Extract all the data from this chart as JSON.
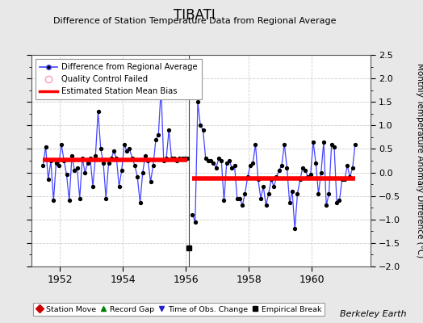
{
  "title": "TIBATI",
  "subtitle": "Difference of Station Temperature Data from Regional Average",
  "ylabel": "Monthly Temperature Anomaly Difference (°C)",
  "xlabel_ticks": [
    1952,
    1954,
    1956,
    1958,
    1960
  ],
  "ylim": [
    -2.0,
    2.5
  ],
  "yticks": [
    -2.0,
    -1.5,
    -1.0,
    -0.5,
    0.0,
    0.5,
    1.0,
    1.5,
    2.0,
    2.5
  ],
  "background_color": "#e8e8e8",
  "plot_bg_color": "#ffffff",
  "segment1_bias": 0.27,
  "segment2_bias": -0.12,
  "break_year": 1956.083,
  "break_marker_y": -1.6,
  "data_x": [
    1951.458,
    1951.542,
    1951.625,
    1951.708,
    1951.792,
    1951.875,
    1951.958,
    1952.042,
    1952.125,
    1952.208,
    1952.292,
    1952.375,
    1952.458,
    1952.542,
    1952.625,
    1952.708,
    1952.792,
    1952.875,
    1952.958,
    1953.042,
    1953.125,
    1953.208,
    1953.292,
    1953.375,
    1953.458,
    1953.542,
    1953.625,
    1953.708,
    1953.792,
    1953.875,
    1953.958,
    1954.042,
    1954.125,
    1954.208,
    1954.292,
    1954.375,
    1954.458,
    1954.542,
    1954.625,
    1954.708,
    1954.792,
    1954.875,
    1954.958,
    1955.042,
    1955.125,
    1955.208,
    1955.292,
    1955.375,
    1955.458,
    1955.542,
    1955.625,
    1955.708,
    1955.792,
    1955.875,
    1955.958,
    1956.042,
    1956.208,
    1956.292,
    1956.375,
    1956.458,
    1956.542,
    1956.625,
    1956.708,
    1956.792,
    1956.875,
    1956.958,
    1957.042,
    1957.125,
    1957.208,
    1957.292,
    1957.375,
    1957.458,
    1957.542,
    1957.625,
    1957.708,
    1957.792,
    1957.875,
    1957.958,
    1958.042,
    1958.125,
    1958.208,
    1958.292,
    1958.375,
    1958.458,
    1958.542,
    1958.625,
    1958.708,
    1958.792,
    1958.875,
    1958.958,
    1959.042,
    1959.125,
    1959.208,
    1959.292,
    1959.375,
    1959.458,
    1959.542,
    1959.625,
    1959.708,
    1959.792,
    1959.875,
    1959.958,
    1960.042,
    1960.125,
    1960.208,
    1960.292,
    1960.375,
    1960.458,
    1960.542,
    1960.625,
    1960.708,
    1960.792,
    1960.875,
    1960.958,
    1961.042,
    1961.125,
    1961.208,
    1961.292,
    1961.375
  ],
  "data_y": [
    0.15,
    0.55,
    -0.15,
    0.25,
    -0.6,
    0.2,
    0.15,
    0.6,
    0.25,
    -0.05,
    -0.6,
    0.35,
    0.05,
    0.1,
    -0.55,
    0.3,
    0.0,
    0.2,
    0.3,
    -0.3,
    0.35,
    1.3,
    0.5,
    0.2,
    -0.55,
    0.2,
    0.3,
    0.45,
    0.3,
    -0.3,
    0.05,
    0.6,
    0.45,
    0.5,
    0.3,
    0.15,
    -0.1,
    -0.65,
    0.0,
    0.35,
    0.25,
    -0.2,
    0.15,
    0.7,
    0.8,
    1.8,
    0.25,
    0.3,
    0.9,
    0.3,
    0.3,
    0.25,
    0.3,
    0.3,
    0.3,
    0.3,
    -0.9,
    -1.05,
    1.5,
    1.0,
    0.9,
    0.3,
    0.25,
    0.25,
    0.2,
    0.1,
    0.3,
    0.25,
    -0.6,
    0.2,
    0.25,
    0.1,
    0.15,
    -0.55,
    -0.55,
    -0.7,
    -0.45,
    -0.1,
    0.15,
    0.2,
    0.6,
    -0.15,
    -0.55,
    -0.3,
    -0.7,
    -0.45,
    -0.15,
    -0.3,
    -0.1,
    0.05,
    0.15,
    0.6,
    0.1,
    -0.65,
    -0.4,
    -1.2,
    -0.45,
    -0.15,
    0.1,
    0.05,
    -0.1,
    -0.05,
    0.65,
    0.2,
    -0.45,
    0.0,
    0.65,
    -0.7,
    -0.45,
    0.6,
    0.55,
    -0.65,
    -0.6,
    -0.15,
    -0.15,
    0.15,
    -0.1,
    0.1,
    0.6
  ],
  "line_color": "#4444ff",
  "bias_color": "#ff0000",
  "dot_color": "#000000",
  "legend_line_label": "Difference from Regional Average",
  "legend_qc_label": "Quality Control Failed",
  "legend_bias_label": "Estimated Station Mean Bias",
  "bottom_legend": [
    {
      "label": "Station Move",
      "color": "#cc0000",
      "marker": "D"
    },
    {
      "label": "Record Gap",
      "color": "#008000",
      "marker": "^"
    },
    {
      "label": "Time of Obs. Change",
      "color": "#2222cc",
      "marker": "v"
    },
    {
      "label": "Empirical Break",
      "color": "#000000",
      "marker": "s"
    }
  ],
  "berkeley_earth_text": "Berkeley Earth",
  "xlim": [
    1951.1,
    1961.85
  ]
}
